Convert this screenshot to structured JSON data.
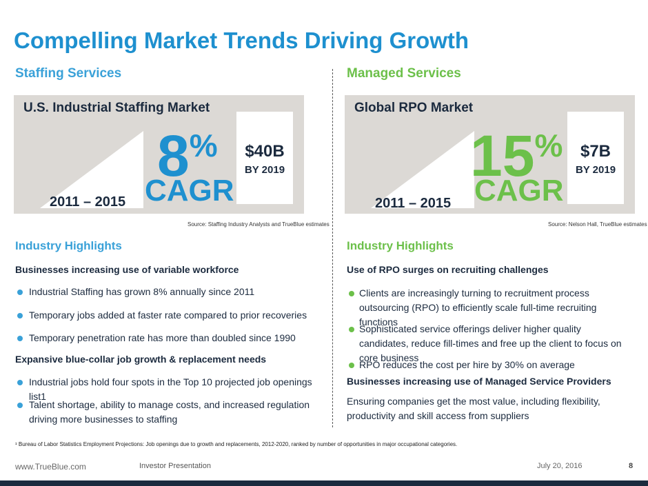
{
  "title": "Compelling Market Trends Driving Growth",
  "left": {
    "section": "Staffing Services",
    "panel_title": "U.S. Industrial Staffing Market",
    "years": "2011 – 2015",
    "pct": "8",
    "pct_sign": "%",
    "cagr": "CAGR",
    "value": "$40B",
    "value_sub": "BY 2019",
    "source": "Source:  Staffing Industry Analysts and TrueBlue estimates",
    "highlights_title": "Industry Highlights",
    "sub1": "Businesses increasing use of variable workforce",
    "bullets1": [
      "Industrial Staffing has grown 8% annually since 2011",
      "Temporary jobs added at faster rate compared to prior recoveries",
      "Temporary penetration rate has more than doubled since 1990"
    ],
    "sub2": "Expansive blue-collar job growth & replacement needs",
    "bullets2": [
      "Industrial jobs hold four spots in the Top 10 projected job openings list1",
      "Talent shortage, ability to manage costs, and increased regulation driving more businesses to staffing"
    ]
  },
  "right": {
    "section": "Managed Services",
    "panel_title": "Global RPO Market",
    "years": "2011 – 2015",
    "pct": "15",
    "pct_sign": "%",
    "cagr": "CAGR",
    "value": "$7B",
    "value_sub": "BY 2019",
    "source": "Source:  Nelson Hall, TrueBlue estimates",
    "highlights_title": "Industry Highlights",
    "sub1": "Use of RPO surges on recruiting challenges",
    "bullets1": [
      "Clients are increasingly turning to recruitment process outsourcing (RPO) to efficiently scale full-time recruiting functions",
      "Sophisticated service offerings deliver higher quality candidates, reduce fill-times and free up the client to focus on core business",
      "RPO reduces the cost per hire by 30% on average"
    ],
    "sub2": "Businesses increasing use of Managed Service Providers",
    "paragraph": "Ensuring companies get the most value, including flexibility, productivity and skill access from suppliers"
  },
  "footnote": "¹ Bureau of Labor Statistics Employment Projections: Job openings due to growth and replacements, 2012-2020, ranked by number of opportunities in major occupational categories.",
  "footer": {
    "url": "www.TrueBlue.com",
    "label": "Investor Presentation",
    "date": "July 20, 2016",
    "page": "8"
  },
  "colors": {
    "title_blue": "#1e90cf",
    "staffing_blue": "#3aa1d8",
    "managed_green": "#6cc04a",
    "navy": "#1b2a3e",
    "panel_gray": "#dcd9d5"
  }
}
